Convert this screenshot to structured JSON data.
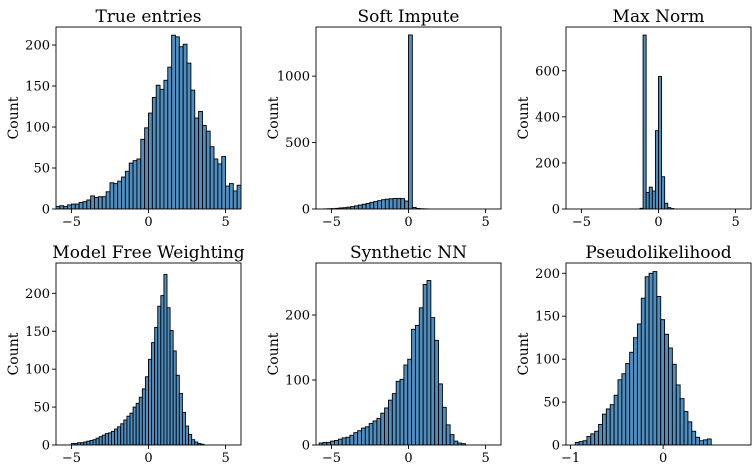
{
  "figure": {
    "background": "#ffffff",
    "bar_color": "#4f8ec0",
    "edge_color": "#000000"
  },
  "chart_data": [
    {
      "type": "bar",
      "subtype": "histogram",
      "title": "True entries",
      "xlabel": "",
      "ylabel": "Count",
      "xlim": [
        -6,
        6
      ],
      "ylim": [
        0,
        222
      ],
      "xticks": [
        -5,
        0,
        5
      ],
      "yticks": [
        0,
        50,
        100,
        150,
        200
      ],
      "bin_start": -6,
      "bin_width": 0.25,
      "values": [
        3,
        4,
        3,
        5,
        6,
        6,
        8,
        9,
        11,
        16,
        14,
        15,
        15,
        21,
        32,
        31,
        34,
        39,
        46,
        56,
        59,
        61,
        85,
        99,
        117,
        136,
        151,
        146,
        157,
        173,
        212,
        210,
        198,
        201,
        178,
        145,
        111,
        119,
        102,
        95,
        76,
        61,
        55,
        64,
        28,
        31,
        22,
        29,
        12,
        13,
        7,
        7
      ]
    },
    {
      "type": "bar",
      "subtype": "histogram",
      "title": "Soft Impute",
      "xlabel": "",
      "ylabel": "Count",
      "xlim": [
        -6,
        6
      ],
      "ylim": [
        0,
        1370
      ],
      "xticks": [
        -5,
        0,
        5
      ],
      "yticks": [
        0,
        500,
        1000
      ],
      "bin_start": -6,
      "bin_width": 0.25,
      "values": [
        0,
        0,
        1,
        2,
        3,
        5,
        8,
        10,
        14,
        18,
        24,
        30,
        36,
        42,
        50,
        57,
        63,
        70,
        74,
        77,
        79,
        80,
        78,
        60,
        1310,
        12,
        4,
        2,
        1,
        0,
        0,
        0,
        0,
        0,
        0,
        0,
        0,
        0,
        0,
        0,
        0,
        0,
        0,
        0,
        0,
        0,
        0,
        0
      ]
    },
    {
      "type": "bar",
      "subtype": "histogram",
      "title": "Max Norm",
      "xlabel": "",
      "ylabel": "Count",
      "xlim": [
        -6,
        6
      ],
      "ylim": [
        0,
        790
      ],
      "xticks": [
        -5,
        0,
        5
      ],
      "yticks": [
        0,
        200,
        400,
        600
      ],
      "bin_start": -1.2,
      "bin_width": 0.2,
      "values": [
        3,
        755,
        72,
        95,
        78,
        340,
        575,
        140,
        25,
        6,
        2
      ]
    },
    {
      "type": "bar",
      "subtype": "histogram",
      "title": "Model Free Weighting",
      "xlabel": "",
      "ylabel": "Count",
      "xlim": [
        -6,
        6
      ],
      "ylim": [
        0,
        240
      ],
      "xticks": [
        -5,
        0,
        5
      ],
      "yticks": [
        0,
        50,
        100,
        150,
        200
      ],
      "bin_start": -5,
      "bin_width": 0.2,
      "values": [
        2,
        2,
        3,
        3,
        4,
        5,
        6,
        7,
        9,
        11,
        13,
        15,
        16,
        18,
        21,
        24,
        28,
        33,
        38,
        42,
        50,
        55,
        63,
        74,
        90,
        113,
        135,
        155,
        183,
        197,
        225,
        181,
        151,
        124,
        92,
        68,
        43,
        25,
        14,
        7,
        4,
        2,
        1
      ]
    },
    {
      "type": "bar",
      "subtype": "histogram",
      "title": "Synthetic NN",
      "xlabel": "",
      "ylabel": "Count",
      "xlim": [
        -6,
        6
      ],
      "ylim": [
        0,
        280
      ],
      "xticks": [
        -5,
        0,
        5
      ],
      "yticks": [
        0,
        100,
        200
      ],
      "bin_start": -5.8,
      "bin_width": 0.25,
      "values": [
        3,
        4,
        4,
        6,
        7,
        9,
        11,
        12,
        15,
        19,
        22,
        26,
        28,
        33,
        37,
        41,
        49,
        57,
        69,
        79,
        98,
        101,
        123,
        132,
        178,
        184,
        211,
        247,
        253,
        196,
        161,
        94,
        58,
        31,
        16,
        6,
        3,
        2
      ]
    },
    {
      "type": "bar",
      "subtype": "histogram",
      "title": "Pseudolikelihood",
      "xlabel": "",
      "ylabel": "Count",
      "xlim": [
        -1.05,
        0.95
      ],
      "ylim": [
        0,
        212
      ],
      "xticks": [
        -1,
        0
      ],
      "yticks": [
        0,
        50,
        100,
        150,
        200
      ],
      "bin_start": -0.95,
      "bin_width": 0.042,
      "values": [
        3,
        4,
        5,
        10,
        13,
        16,
        24,
        36,
        42,
        47,
        58,
        76,
        83,
        95,
        108,
        125,
        141,
        171,
        196,
        200,
        202,
        173,
        146,
        129,
        113,
        94,
        70,
        54,
        39,
        27,
        16,
        9,
        5,
        6,
        7
      ]
    }
  ]
}
